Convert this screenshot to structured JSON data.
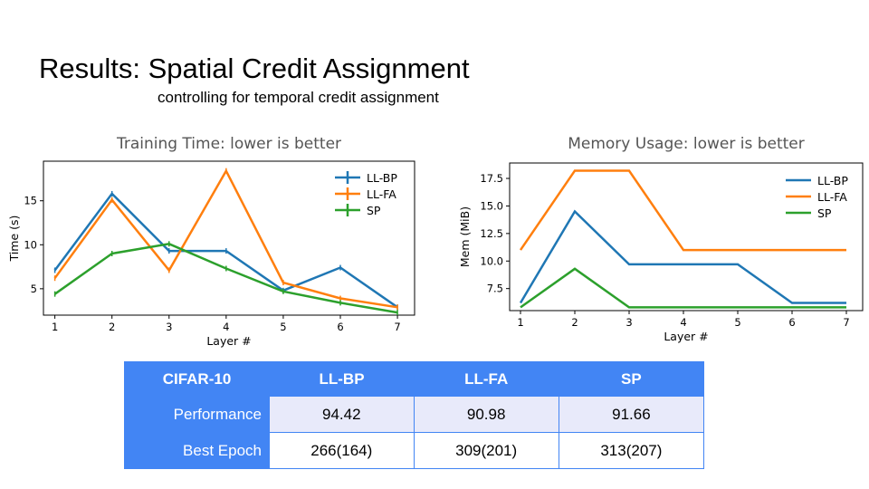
{
  "slide": {
    "title": "Results: Spatial Credit Assignment",
    "subtitle": "controlling for temporal credit assignment"
  },
  "chart_data": [
    {
      "type": "line",
      "title": "Training Time: lower is better",
      "xlabel": "Layer #",
      "ylabel": "Time (s)",
      "x": [
        1,
        2,
        3,
        4,
        5,
        6,
        7
      ],
      "xlim": [
        0.8,
        7.3
      ],
      "ylim": [
        2.0,
        19.5
      ],
      "yticks": [
        5,
        10,
        15
      ],
      "legend": "top-right",
      "legend_style": "errorbar",
      "grid": false,
      "series": [
        {
          "name": "LL-BP",
          "color": "#1f77b4",
          "values": [
            7.1,
            15.8,
            9.3,
            9.3,
            4.8,
            7.4,
            2.9
          ]
        },
        {
          "name": "LL-FA",
          "color": "#ff7f0e",
          "values": [
            6.2,
            15.1,
            7.1,
            18.4,
            5.7,
            3.9,
            2.9
          ]
        },
        {
          "name": "SP",
          "color": "#2ca02c",
          "values": [
            4.4,
            9.0,
            10.1,
            7.3,
            4.7,
            3.4,
            2.3
          ]
        }
      ]
    },
    {
      "type": "line",
      "title": "Memory Usage: lower is better",
      "xlabel": "Layer #",
      "ylabel": "Mem (MiB)",
      "x": [
        1,
        2,
        3,
        4,
        5,
        6,
        7
      ],
      "xlim": [
        0.8,
        7.3
      ],
      "ylim": [
        5.5,
        18.9
      ],
      "yticks": [
        7.5,
        10.0,
        12.5,
        15.0,
        17.5
      ],
      "ytick_labels": [
        "7.5",
        "10.0",
        "12.5",
        "15.0",
        "17.5"
      ],
      "legend": "top-right",
      "legend_style": "line",
      "grid": false,
      "series": [
        {
          "name": "LL-BP",
          "color": "#1f77b4",
          "values": [
            6.2,
            14.5,
            9.7,
            9.7,
            9.7,
            6.2,
            6.2
          ]
        },
        {
          "name": "LL-FA",
          "color": "#ff7f0e",
          "values": [
            11.0,
            18.2,
            18.2,
            11.0,
            11.0,
            11.0,
            11.0
          ]
        },
        {
          "name": "SP",
          "color": "#2ca02c",
          "values": [
            5.8,
            9.3,
            5.8,
            5.8,
            5.8,
            5.8,
            5.8
          ]
        }
      ]
    }
  ],
  "table": {
    "corner": "CIFAR-10",
    "columns": [
      "LL-BP",
      "LL-FA",
      "SP"
    ],
    "rows": [
      {
        "label": "Performance",
        "values": [
          "94.42",
          "90.98",
          "91.66"
        ]
      },
      {
        "label": "Best Epoch",
        "values": [
          "266(164)",
          "309(201)",
          "313(207)"
        ]
      }
    ]
  }
}
